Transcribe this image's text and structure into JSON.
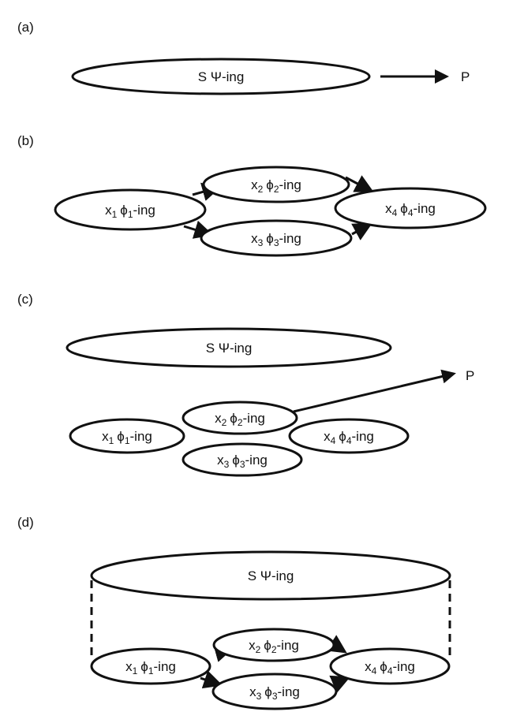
{
  "panels": {
    "a": {
      "letter": "(a)",
      "s": {
        "pre": "S ",
        "sym": "Ψ",
        "post": "-ing"
      },
      "p": "P"
    },
    "b": {
      "letter": "(b)",
      "n1": {
        "x": "x",
        "sub": "1",
        "phi": "ϕ",
        "post": "-ing"
      },
      "n2": {
        "x": "x",
        "sub": "2",
        "phi": "ϕ",
        "post": "-ing"
      },
      "n3": {
        "x": "x",
        "sub": "3",
        "phi": "ϕ",
        "post": "-ing"
      },
      "n4": {
        "x": "x",
        "sub": "4",
        "phi": "ϕ",
        "post": "-ing"
      }
    },
    "c": {
      "letter": "(c)",
      "s": {
        "pre": "S ",
        "sym": "Ψ",
        "post": "-ing"
      },
      "p": "P",
      "n1": {
        "x": "x",
        "sub": "1",
        "phi": "ϕ",
        "post": "-ing"
      },
      "n2": {
        "x": "x",
        "sub": "2",
        "phi": "ϕ",
        "post": "-ing"
      },
      "n3": {
        "x": "x",
        "sub": "3",
        "phi": "ϕ",
        "post": "-ing"
      },
      "n4": {
        "x": "x",
        "sub": "4",
        "phi": "ϕ",
        "post": "-ing"
      }
    },
    "d": {
      "letter": "(d)",
      "s": {
        "pre": "S ",
        "sym": "Ψ",
        "post": "-ing"
      },
      "n1": {
        "x": "x",
        "sub": "1",
        "phi": "ϕ",
        "post": "-ing"
      },
      "n2": {
        "x": "x",
        "sub": "2",
        "phi": "ϕ",
        "post": "-ing"
      },
      "n3": {
        "x": "x",
        "sub": "3",
        "phi": "ϕ",
        "post": "-ing"
      },
      "n4": {
        "x": "x",
        "sub": "4",
        "phi": "ϕ",
        "post": "-ing"
      }
    }
  }
}
